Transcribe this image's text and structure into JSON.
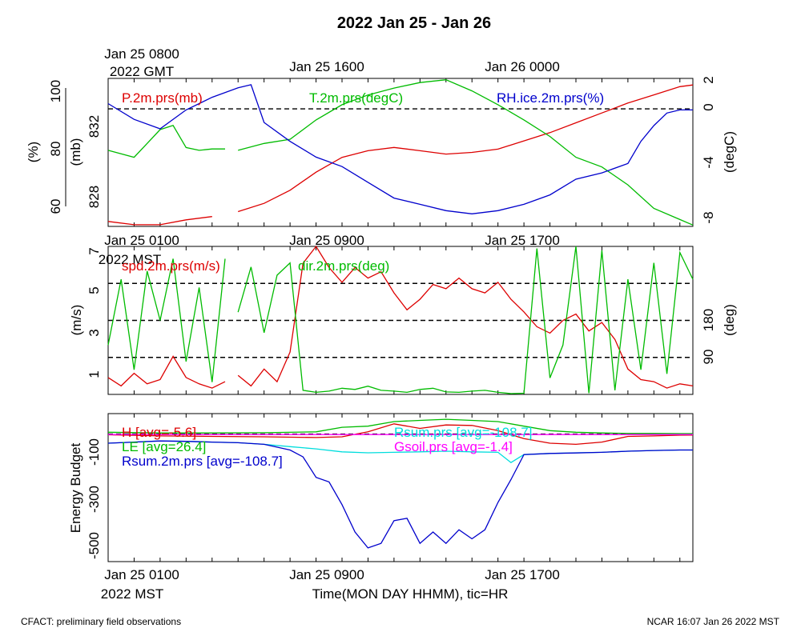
{
  "title": "2022 Jan 25 - Jan 26",
  "footer": {
    "left": "CFACT: preliminary field observations",
    "right": "NCAR 16:07 Jan 26 2022 MST"
  },
  "colors": {
    "red": "#dd0000",
    "green": "#00bb00",
    "blue": "#0000cc",
    "cyan": "#00dddd",
    "magenta": "#ff00ff",
    "black": "#000000"
  },
  "top_axis": {
    "first_label": "Jan 25 0800",
    "first_label_year": "2022 GMT",
    "labels": [
      "Jan 25 1600",
      "Jan 26 0000"
    ]
  },
  "bottom_axis": {
    "first_label": "Jan 25 0100",
    "first_label_year": "2022 MST",
    "labels": [
      "Jan 25 0900",
      "Jan 25 1700"
    ],
    "title": "Time(MON DAY HHMM), tic=HR"
  },
  "middle_axis": {
    "first_label": "Jan 25 0100",
    "first_label_year": "2022 MST",
    "labels": [
      "Jan 25 0900",
      "Jan 25 1700"
    ]
  },
  "chart_data": [
    {
      "type": "line",
      "panel": "pressure-temperature-rh",
      "x_unit": "hours since Jan 25 0030 MST",
      "xlim": [
        0,
        22.5
      ],
      "left_axes": [
        {
          "label": "(%)",
          "ticks": [
            "60",
            "80",
            "100"
          ],
          "ylim": [
            58,
            105
          ],
          "series": "RH.ice.2m.prs(%)"
        },
        {
          "label": "(mb)",
          "ticks": [
            "828",
            "832"
          ],
          "ylim": [
            826.5,
            835.5
          ],
          "series": "P.2m.prs(mb)"
        }
      ],
      "right_axis": {
        "label": "(degC)",
        "ticks": [
          "-8",
          "-4",
          "0",
          "2"
        ],
        "ylim": [
          -8.5,
          2.2
        ],
        "series": "T.2m.prs(degC)"
      },
      "reference_lines": [
        {
          "axis": "degC",
          "value": 0,
          "style": "dashed"
        }
      ],
      "series": [
        {
          "name": "P.2m.prs(mb)",
          "color": "red",
          "x": [
            0,
            1,
            2,
            3,
            4,
            5,
            6,
            7,
            8,
            9,
            10,
            11,
            12,
            13,
            14,
            15,
            16,
            17,
            18,
            19,
            20,
            21,
            22,
            22.5
          ],
          "y": [
            826.8,
            826.6,
            826.6,
            826.9,
            827.1,
            827.4,
            827.9,
            828.7,
            829.8,
            830.7,
            831.1,
            831.3,
            831.1,
            830.9,
            831.0,
            831.2,
            831.7,
            832.2,
            832.8,
            833.4,
            834.0,
            834.5,
            835.0,
            835.1
          ],
          "gaps_after_x": [
            4.5
          ]
        },
        {
          "name": "T.2m.prs(degC)",
          "color": "green",
          "x": [
            0,
            1,
            1.5,
            2,
            2.5,
            3,
            3.5,
            4,
            4.5,
            5,
            6,
            7,
            8,
            9,
            10,
            11,
            12,
            13,
            14,
            15,
            16,
            17,
            18,
            19,
            20,
            21,
            22,
            22.5
          ],
          "y": [
            -3.0,
            -3.5,
            -2.5,
            -1.5,
            -1.2,
            -2.8,
            -3.0,
            -2.9,
            -2.9,
            -3.0,
            -2.5,
            -2.2,
            -0.8,
            0.3,
            1.0,
            1.5,
            1.9,
            2.1,
            1.3,
            0.3,
            -0.8,
            -2.0,
            -3.5,
            -4.2,
            -5.5,
            -7.2,
            -8.0,
            -8.4
          ],
          "gaps_after_x": [
            4.5
          ]
        },
        {
          "name": "RH.ice.2m.prs(%)",
          "color": "blue",
          "x": [
            0,
            1,
            2,
            3,
            4,
            5,
            5.5,
            6,
            7,
            8,
            9,
            10,
            11,
            12,
            13,
            14,
            15,
            16,
            17,
            18,
            19,
            20,
            20.5,
            21,
            21.5,
            22,
            22.5
          ],
          "y": [
            97,
            92,
            89,
            95,
            99,
            102,
            103,
            91,
            85,
            80,
            77,
            72,
            67,
            65,
            63,
            62,
            63,
            65,
            68,
            73,
            75,
            78,
            85,
            90,
            94,
            95,
            95
          ]
        }
      ]
    },
    {
      "type": "line",
      "panel": "wind",
      "x_unit": "hours since Jan 25 0030 MST",
      "xlim": [
        0,
        22.5
      ],
      "left_axis": {
        "label": "(m/s)",
        "ticks": [
          "1",
          "3",
          "5",
          "7"
        ],
        "ylim": [
          0,
          7
        ]
      },
      "right_axis": {
        "label": "(deg)",
        "ticks": [
          "90",
          "180"
        ],
        "ylim": [
          0,
          360
        ]
      },
      "reference_lines": [
        {
          "axis": "deg",
          "value": 90,
          "style": "dashed"
        },
        {
          "axis": "deg",
          "value": 180,
          "style": "dashed"
        },
        {
          "axis": "deg",
          "value": 270,
          "style": "dashed"
        }
      ],
      "series": [
        {
          "name": "spd.2m.prs(m/s)",
          "color": "red",
          "x": [
            0,
            0.5,
            1,
            1.5,
            2,
            2.5,
            3,
            3.5,
            4,
            4.5,
            5,
            5.5,
            6,
            6.5,
            7,
            7.5,
            8,
            8.5,
            9,
            9.5,
            10,
            10.5,
            11,
            11.5,
            12,
            12.5,
            13,
            13.5,
            14,
            14.5,
            15,
            15.5,
            16,
            16.5,
            17,
            17.5,
            18,
            18.5,
            19,
            19.5,
            20,
            20.5,
            21,
            21.5,
            22,
            22.5
          ],
          "y": [
            0.8,
            0.4,
            1.0,
            0.5,
            0.7,
            1.8,
            0.8,
            0.5,
            0.3,
            0.6,
            0.9,
            0.4,
            1.2,
            0.6,
            2.0,
            6.2,
            7.0,
            6.0,
            5.3,
            6.0,
            5.5,
            5.8,
            4.8,
            4.0,
            4.5,
            5.2,
            5.0,
            5.5,
            5.0,
            4.8,
            5.3,
            4.5,
            3.9,
            3.2,
            2.9,
            3.5,
            3.8,
            3.0,
            3.4,
            2.6,
            1.2,
            0.7,
            0.6,
            0.3,
            0.5,
            0.4
          ],
          "gaps_after_x": [
            4.5
          ]
        },
        {
          "name": "dir.2m.prs(deg)",
          "color": "green",
          "x": [
            0,
            0.5,
            1,
            1.5,
            2,
            2.5,
            3,
            3.5,
            4,
            4.5,
            5,
            5.5,
            6,
            6.5,
            7,
            7.5,
            8,
            8.5,
            9,
            9.5,
            10,
            10.5,
            11,
            11.5,
            12,
            12.5,
            13,
            13.5,
            14,
            14.5,
            15,
            15.5,
            16,
            16.5,
            17,
            17.5,
            18,
            18.5,
            19,
            19.5,
            20,
            20.5,
            21,
            21.5,
            22,
            22.5
          ],
          "y": [
            120,
            280,
            60,
            300,
            180,
            330,
            80,
            260,
            30,
            330,
            200,
            310,
            150,
            290,
            320,
            10,
            5,
            8,
            15,
            12,
            20,
            10,
            8,
            5,
            12,
            15,
            6,
            5,
            8,
            10,
            5,
            2,
            3,
            355,
            40,
            120,
            360,
            3,
            350,
            10,
            280,
            60,
            320,
            50,
            345,
            280
          ],
          "gaps_after_x": [
            4.5
          ]
        }
      ]
    },
    {
      "type": "line",
      "panel": "energy-budget",
      "x_unit": "hours since Jan 25 0030 MST",
      "xlim": [
        0,
        22.5
      ],
      "left_axis": {
        "label": "Energy Budget",
        "ticks": [
          "-500",
          "-300",
          "-100"
        ],
        "ylim": [
          -560,
          90
        ]
      },
      "reference_lines": [
        {
          "value": 0,
          "style": "dashed"
        }
      ],
      "series": [
        {
          "name": "H [avg=-5.6]",
          "color": "red",
          "x": [
            0,
            2,
            4,
            6,
            8,
            9,
            10,
            11,
            12,
            13,
            14,
            15,
            16,
            17,
            18,
            19,
            20,
            21,
            22,
            22.5
          ],
          "y": [
            -3,
            -8,
            -10,
            -12,
            -15,
            -12,
            10,
            45,
            25,
            40,
            38,
            15,
            -20,
            -40,
            -45,
            -35,
            -10,
            -8,
            -5,
            -4
          ]
        },
        {
          "name": "LE [avg=26.4]",
          "color": "green",
          "x": [
            0,
            2,
            4,
            6,
            8,
            9,
            10,
            11,
            12,
            13,
            14,
            15,
            16,
            17,
            18,
            19,
            20,
            21,
            22,
            22.5
          ],
          "y": [
            8,
            5,
            5,
            6,
            10,
            30,
            35,
            55,
            60,
            65,
            60,
            55,
            35,
            15,
            8,
            5,
            3,
            3,
            2,
            2
          ]
        },
        {
          "name": "Rsum.prs [avg=-108.7]",
          "color": "cyan",
          "x": [
            0,
            1,
            2,
            3,
            4,
            5,
            6,
            7,
            8,
            9,
            10,
            11,
            12,
            13,
            14,
            15,
            15.5,
            16,
            17,
            18,
            19,
            20,
            21,
            22,
            22.5
          ],
          "y": [
            -40,
            -35,
            -30,
            -32,
            -35,
            -38,
            -45,
            -55,
            -65,
            -78,
            -82,
            -80,
            -78,
            -75,
            -78,
            -80,
            -125,
            -90,
            -85,
            -82,
            -80,
            -75,
            -72,
            -70,
            -70
          ]
        },
        {
          "name": "Gsoil.prs [avg=-1.4]",
          "color": "magenta",
          "x": [
            0,
            22.5
          ],
          "y": [
            -2,
            -2
          ]
        },
        {
          "name": "Rsum.2m.prs [avg=-108.7]",
          "color": "blue",
          "x": [
            0,
            1,
            2,
            3,
            4,
            5,
            6,
            7,
            7.5,
            8,
            8.5,
            9,
            9.5,
            10,
            10.5,
            11,
            11.5,
            12,
            12.5,
            13,
            13.5,
            14,
            14.5,
            15,
            15.5,
            16,
            17,
            18,
            19,
            20,
            21,
            22,
            22.5
          ],
          "y": [
            -40,
            -35,
            -30,
            -32,
            -35,
            -38,
            -45,
            -70,
            -100,
            -190,
            -210,
            -310,
            -430,
            -500,
            -480,
            -380,
            -370,
            -480,
            -430,
            -480,
            -420,
            -460,
            -420,
            -300,
            -200,
            -90,
            -85,
            -83,
            -80,
            -75,
            -72,
            -70,
            -70
          ]
        }
      ]
    }
  ]
}
